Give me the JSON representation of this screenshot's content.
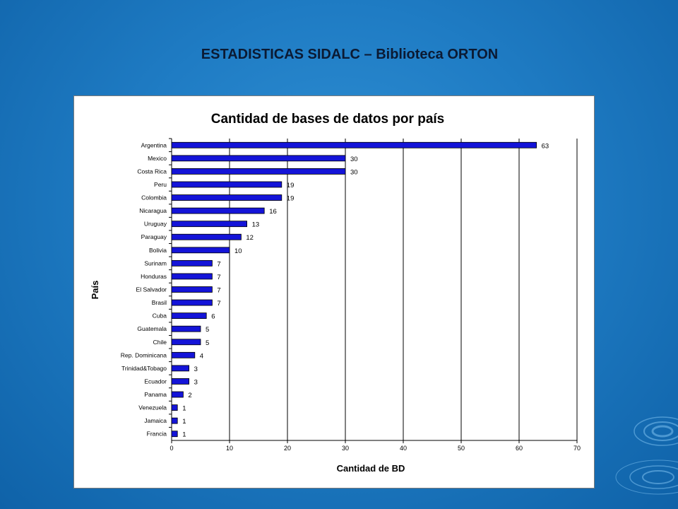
{
  "slide": {
    "title": "ESTADISTICAS SIDALC – Biblioteca ORTON"
  },
  "colors": {
    "background": "#1f7cc4",
    "bar": "#1414d8",
    "bar_border": "#000000"
  },
  "chart_data": {
    "type": "bar",
    "orientation": "horizontal",
    "title": "Cantidad de bases de datos por país",
    "xlabel": "Cantidad de BD",
    "ylabel": "País",
    "xlim": [
      0,
      70
    ],
    "xticks": [
      0,
      10,
      20,
      30,
      40,
      50,
      60,
      70
    ],
    "grid": true,
    "categories": [
      "Argentina",
      "Mexico",
      "Costa Rica",
      "Peru",
      "Colombia",
      "Nicaragua",
      "Uruguay",
      "Paraguay",
      "Bolivia",
      "Surinam",
      "Honduras",
      "El Salvador",
      "Brasil",
      "Cuba",
      "Guatemala",
      "Chile",
      "Rep. Dominicana",
      "Trinidad&Tobago",
      "Ecuador",
      "Panama",
      "Venezuela",
      "Jamaica",
      "Francia"
    ],
    "values": [
      63,
      30,
      30,
      19,
      19,
      16,
      13,
      12,
      10,
      7,
      7,
      7,
      7,
      6,
      5,
      5,
      4,
      3,
      3,
      2,
      1,
      1,
      1
    ]
  }
}
